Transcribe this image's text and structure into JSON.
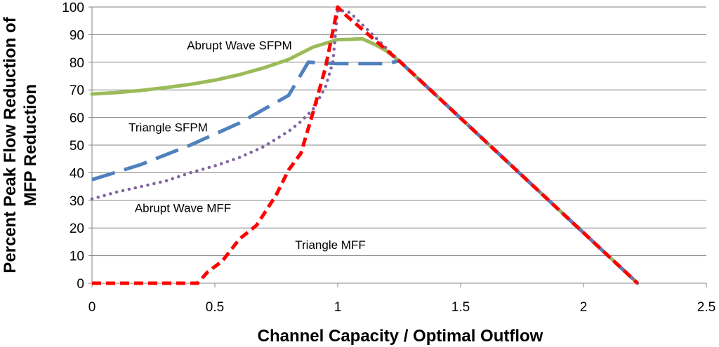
{
  "chart_data": {
    "type": "line",
    "title": "",
    "xlabel": "Channel Capacity / Optimal Outflow",
    "ylabel_lines": [
      "Percent Peak Flow Reduction of",
      "MFP Reduction"
    ],
    "xlim": [
      0,
      2.5
    ],
    "ylim": [
      0,
      100
    ],
    "x_ticks": [
      0,
      0.5,
      1,
      1.5,
      2,
      2.5
    ],
    "x_tick_labels": [
      "0",
      "0.5",
      "1",
      "1.5",
      "2",
      "2.5"
    ],
    "y_ticks": [
      0,
      10,
      20,
      30,
      40,
      50,
      60,
      70,
      80,
      90,
      100
    ],
    "y_tick_labels": [
      "0",
      "10",
      "20",
      "30",
      "40",
      "50",
      "60",
      "70",
      "80",
      "90",
      "100"
    ],
    "grid": "horizontal",
    "legend": "none (inline annotations)",
    "series": [
      {
        "name": "Abrupt Wave SFPM",
        "color": "#9BBB59",
        "style": "solid",
        "x": [
          0,
          0.1,
          0.2,
          0.3,
          0.4,
          0.5,
          0.6,
          0.7,
          0.8,
          0.9,
          1.0,
          1.05,
          1.1,
          1.15,
          1.2,
          1.25,
          2.22
        ],
        "y": [
          68.5,
          69,
          69.8,
          70.8,
          72,
          73.5,
          75.5,
          78,
          81,
          85.5,
          88.2,
          88.3,
          88.5,
          86.5,
          84,
          80.5,
          0
        ]
      },
      {
        "name": "Triangle SFPM",
        "color": "#4F81BD",
        "style": "dash",
        "x": [
          0,
          0.2,
          0.4,
          0.6,
          0.8,
          0.88,
          1.0,
          1.1,
          1.2,
          1.25,
          2.22
        ],
        "y": [
          37.5,
          43,
          50,
          58,
          68,
          80,
          79.5,
          79.5,
          79.5,
          80.5,
          0
        ]
      },
      {
        "name": "Abrupt Wave MFF",
        "color": "#8064A2",
        "style": "dot",
        "x": [
          0,
          0.1,
          0.2,
          0.3,
          0.4,
          0.5,
          0.6,
          0.7,
          0.8,
          0.85,
          0.9,
          0.95,
          0.98,
          1.0,
          1.05,
          1.25,
          2.22
        ],
        "y": [
          30.5,
          33,
          35,
          37,
          40,
          42.5,
          45.5,
          49.5,
          55,
          58.5,
          63,
          71,
          80,
          99,
          98,
          80.5,
          0
        ]
      },
      {
        "name": "Triangle MFF",
        "color": "#FF0000",
        "style": "dash",
        "x": [
          0,
          0.1,
          0.2,
          0.3,
          0.43,
          0.47,
          0.53,
          0.6,
          0.67,
          0.75,
          0.8,
          0.85,
          0.9,
          0.95,
          1.0,
          1.02,
          1.25,
          2.22
        ],
        "y": [
          0,
          0,
          0,
          0,
          0,
          4,
          8,
          16,
          21,
          32,
          41,
          47,
          62,
          78,
          100,
          98,
          80.5,
          0
        ]
      }
    ],
    "annotations": [
      {
        "text": "Abrupt Wave SFPM",
        "x": 0.6,
        "y": 84.7
      },
      {
        "text": "Triangle SFPM",
        "x": 0.31,
        "y": 55
      },
      {
        "text": "Abrupt Wave MFF",
        "x": 0.37,
        "y": 25.7
      },
      {
        "text": "Triangle MFF",
        "x": 0.97,
        "y": 12.5
      }
    ]
  }
}
